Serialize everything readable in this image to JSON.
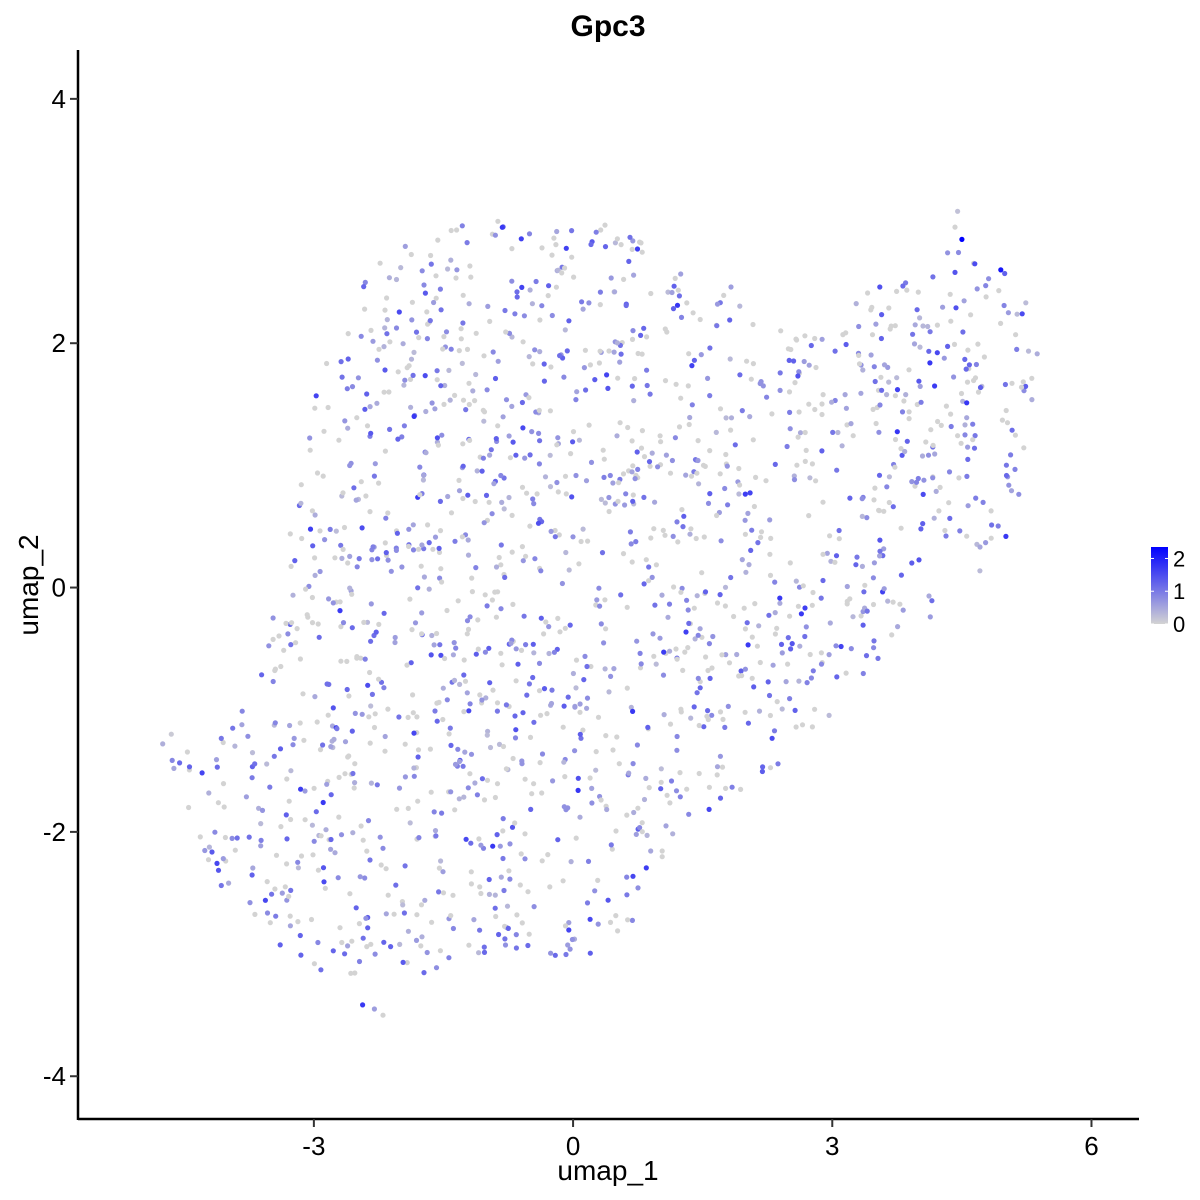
{
  "chart_data": {
    "type": "scatter",
    "title": "Gpc3",
    "xlabel": "umap_1",
    "ylabel": "umap_2",
    "xlim": [
      -5.73,
      6.55
    ],
    "ylim": [
      -4.35,
      4.4
    ],
    "x_ticks": [
      -3,
      0,
      3,
      6
    ],
    "y_ticks": [
      -4,
      -2,
      0,
      2,
      4
    ],
    "x_tick_labels": [
      "-3",
      "0",
      "3",
      "6"
    ],
    "y_tick_labels": [
      "-4",
      "-2",
      "0",
      "2",
      "4"
    ],
    "grid": false,
    "legend": {
      "placement": "right",
      "type": "colorbar",
      "min": 0,
      "max": 2.35,
      "ticks": [
        0,
        1,
        2
      ],
      "tick_labels": [
        "0",
        "1",
        "2"
      ],
      "low_color": "#d3d3d3",
      "high_color": "#0000ff"
    },
    "point_colors": {
      "low": "#d3d3d3",
      "high": "#0000ff"
    },
    "point_count_estimate": 1800,
    "density_polygon": [
      [
        -4.7,
        -1.25
      ],
      [
        -4.3,
        -1.4
      ],
      [
        -4.0,
        -1.15
      ],
      [
        -3.7,
        -0.85
      ],
      [
        -3.5,
        -0.25
      ],
      [
        -3.3,
        0.4
      ],
      [
        -3.2,
        1.0
      ],
      [
        -3.0,
        1.55
      ],
      [
        -2.8,
        1.95
      ],
      [
        -2.55,
        2.35
      ],
      [
        -2.2,
        2.75
      ],
      [
        -1.5,
        2.95
      ],
      [
        -0.9,
        3.02
      ],
      [
        -0.4,
        3.0
      ],
      [
        0.1,
        3.05
      ],
      [
        0.6,
        2.9
      ],
      [
        1.1,
        2.75
      ],
      [
        1.6,
        2.6
      ],
      [
        2.1,
        2.3
      ],
      [
        2.6,
        2.05
      ],
      [
        3.0,
        2.25
      ],
      [
        3.5,
        2.45
      ],
      [
        4.0,
        2.6
      ],
      [
        4.5,
        2.95
      ],
      [
        4.8,
        2.75
      ],
      [
        5.2,
        2.45
      ],
      [
        5.4,
        2.0
      ],
      [
        5.35,
        1.3
      ],
      [
        5.2,
        0.8
      ],
      [
        5.0,
        0.3
      ],
      [
        4.6,
        -0.05
      ],
      [
        4.2,
        -0.3
      ],
      [
        3.8,
        -0.35
      ],
      [
        3.4,
        -0.7
      ],
      [
        3.0,
        -1.05
      ],
      [
        2.6,
        -1.3
      ],
      [
        2.2,
        -1.6
      ],
      [
        1.6,
        -1.85
      ],
      [
        1.1,
        -2.25
      ],
      [
        0.8,
        -2.7
      ],
      [
        0.4,
        -2.95
      ],
      [
        0.0,
        -3.05
      ],
      [
        -0.6,
        -2.95
      ],
      [
        -1.2,
        -3.05
      ],
      [
        -1.6,
        -3.15
      ],
      [
        -2.1,
        -3.25
      ],
      [
        -2.4,
        -3.5
      ],
      [
        -2.7,
        -3.3
      ],
      [
        -3.2,
        -3.1
      ],
      [
        -3.7,
        -2.85
      ],
      [
        -4.1,
        -2.6
      ],
      [
        -4.35,
        -2.15
      ],
      [
        -4.3,
        -1.6
      ],
      [
        -4.7,
        -1.4
      ]
    ],
    "outlier_points": [
      {
        "x": -4.75,
        "y": -1.28,
        "v": 0.4
      },
      {
        "x": -4.65,
        "y": -1.2,
        "v": 0.1
      },
      {
        "x": -4.62,
        "y": -1.48,
        "v": 0.5
      },
      {
        "x": -4.45,
        "y": -1.8,
        "v": 0.0
      },
      {
        "x": -2.3,
        "y": -3.45,
        "v": 0.6
      },
      {
        "x": -2.2,
        "y": -3.5,
        "v": 0.0
      },
      {
        "x": 4.45,
        "y": 3.08,
        "v": 0.2
      },
      {
        "x": 4.42,
        "y": 2.95,
        "v": 0.0
      }
    ],
    "highlight_points": [
      {
        "x": 4.5,
        "y": 2.85,
        "v": 2.35
      },
      {
        "x": 4.95,
        "y": 2.6,
        "v": 2.1
      },
      {
        "x": 4.65,
        "y": 2.65,
        "v": 1.5
      },
      {
        "x": 4.42,
        "y": 2.58,
        "v": 1.4
      }
    ]
  }
}
